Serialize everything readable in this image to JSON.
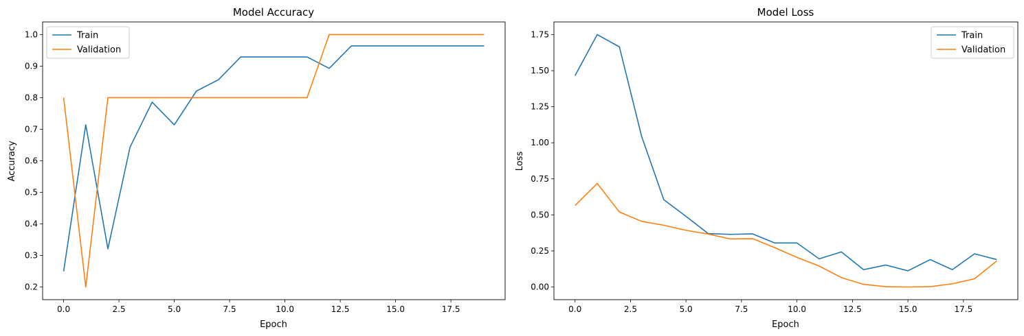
{
  "chart_data": [
    {
      "type": "line",
      "title": "Model Accuracy",
      "xlabel": "Epoch",
      "ylabel": "Accuracy",
      "xlim": [
        -0.95,
        19.95
      ],
      "ylim": [
        0.16,
        1.04
      ],
      "xticks": [
        0.0,
        2.5,
        5.0,
        7.5,
        10.0,
        12.5,
        15.0,
        17.5
      ],
      "xtick_labels": [
        "0.0",
        "2.5",
        "5.0",
        "7.5",
        "10.0",
        "12.5",
        "15.0",
        "17.5"
      ],
      "yticks": [
        0.2,
        0.3,
        0.4,
        0.5,
        0.6,
        0.7,
        0.8,
        0.9,
        1.0
      ],
      "ytick_labels": [
        "0.2",
        "0.3",
        "0.4",
        "0.5",
        "0.6",
        "0.7",
        "0.8",
        "0.9",
        "1.0"
      ],
      "legend_position": "upper-left",
      "x": [
        0,
        1,
        2,
        3,
        4,
        5,
        6,
        7,
        8,
        9,
        10,
        11,
        12,
        13,
        14,
        15,
        16,
        17,
        18,
        19
      ],
      "series": [
        {
          "name": "Train",
          "color": "#1f77b4",
          "values": [
            0.25,
            0.714,
            0.321,
            0.643,
            0.786,
            0.714,
            0.821,
            0.857,
            0.929,
            0.929,
            0.929,
            0.929,
            0.893,
            0.964,
            0.964,
            0.964,
            0.964,
            0.964,
            0.964,
            0.964
          ]
        },
        {
          "name": "Validation",
          "color": "#ff7f0e",
          "values": [
            0.8,
            0.2,
            0.8,
            0.8,
            0.8,
            0.8,
            0.8,
            0.8,
            0.8,
            0.8,
            0.8,
            0.8,
            1.0,
            1.0,
            1.0,
            1.0,
            1.0,
            1.0,
            1.0,
            1.0
          ]
        }
      ]
    },
    {
      "type": "line",
      "title": "Model Loss",
      "xlabel": "Epoch",
      "ylabel": "Loss",
      "xlim": [
        -0.95,
        19.95
      ],
      "ylim": [
        -0.088,
        1.838
      ],
      "xticks": [
        0.0,
        2.5,
        5.0,
        7.5,
        10.0,
        12.5,
        15.0,
        17.5
      ],
      "xtick_labels": [
        "0.0",
        "2.5",
        "5.0",
        "7.5",
        "10.0",
        "12.5",
        "15.0",
        "17.5"
      ],
      "yticks": [
        0.0,
        0.25,
        0.5,
        0.75,
        1.0,
        1.25,
        1.5,
        1.75
      ],
      "ytick_labels": [
        "0.00",
        "0.25",
        "0.50",
        "0.75",
        "1.00",
        "1.25",
        "1.50",
        "1.75"
      ],
      "legend_position": "upper-right",
      "x": [
        0,
        1,
        2,
        3,
        4,
        5,
        6,
        7,
        8,
        9,
        10,
        11,
        12,
        13,
        14,
        15,
        16,
        17,
        18,
        19
      ],
      "series": [
        {
          "name": "Train",
          "color": "#1f77b4",
          "values": [
            1.465,
            1.75,
            1.665,
            1.045,
            0.605,
            0.49,
            0.37,
            0.365,
            0.368,
            0.305,
            0.305,
            0.195,
            0.243,
            0.12,
            0.152,
            0.112,
            0.19,
            0.12,
            0.23,
            0.19
          ]
        },
        {
          "name": "Validation",
          "color": "#ff7f0e",
          "values": [
            0.565,
            0.718,
            0.52,
            0.455,
            0.428,
            0.393,
            0.367,
            0.333,
            0.335,
            0.273,
            0.205,
            0.145,
            0.065,
            0.018,
            0.002,
            0.0,
            0.002,
            0.022,
            0.057,
            0.18
          ]
        }
      ]
    }
  ]
}
